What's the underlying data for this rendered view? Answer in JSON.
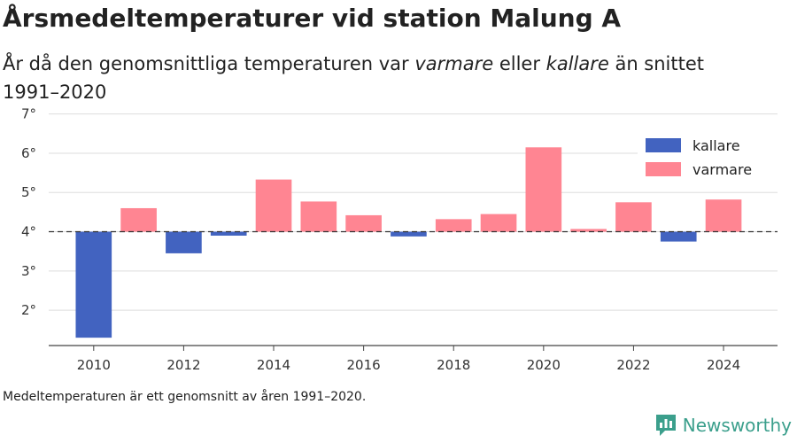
{
  "title": "Årsmedeltemperaturer vid station Malung A",
  "subtitle": {
    "prefix": "År då den genomsnittliga temperaturen var ",
    "warmer_word": "varmare",
    "middle": " eller ",
    "colder_word": "kallare",
    "suffix": " än snittet 1991–2020"
  },
  "footnote": "Medeltemperaturen är ett genomsnitt av åren 1991–2020.",
  "brand": {
    "name": "Newsworthy",
    "icon": "newsworthy-logo-icon",
    "color": "#3b9f8c"
  },
  "colors": {
    "colder": "#4263c0",
    "warmer": "#ff8592",
    "grid": "#dddddd",
    "baseline": "#333333",
    "axis": "#444444"
  },
  "chart_data": {
    "type": "bar",
    "title": "Årsmedeltemperaturer vid station Malung A",
    "xlabel": "",
    "ylabel": "",
    "baseline": 4.0,
    "ylim": [
      1.1,
      7.15
    ],
    "yticks": [
      2,
      3,
      4,
      5,
      6,
      7
    ],
    "ytick_labels": [
      "2°",
      "3°",
      "4°",
      "5°",
      "6°",
      "7°"
    ],
    "xticks": [
      2010,
      2012,
      2014,
      2016,
      2018,
      2020,
      2022,
      2024
    ],
    "xlim": [
      2009,
      2025.2
    ],
    "grid": true,
    "legend_position": "top-right",
    "series": [
      {
        "name": "kallare",
        "color": "#4263c0"
      },
      {
        "name": "varmare",
        "color": "#ff8592"
      }
    ],
    "x": [
      2010,
      2011,
      2012,
      2013,
      2014,
      2015,
      2016,
      2017,
      2018,
      2019,
      2020,
      2021,
      2022,
      2023,
      2024
    ],
    "values": [
      1.3,
      4.6,
      3.45,
      3.9,
      5.33,
      4.77,
      4.42,
      3.88,
      4.32,
      4.45,
      6.15,
      4.07,
      4.75,
      3.75,
      4.82
    ]
  }
}
